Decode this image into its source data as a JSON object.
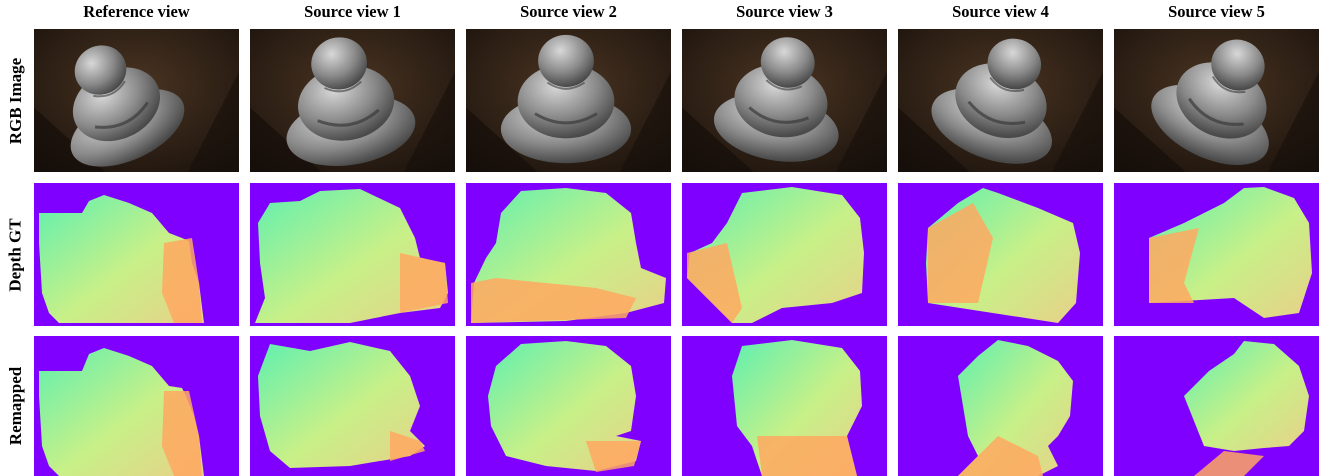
{
  "columns": [
    "Reference view",
    "Source view 1",
    "Source view 2",
    "Source view 3",
    "Source view 4",
    "Source view 5"
  ],
  "rows": [
    "RGB Image",
    "Depth GT",
    "Remapped"
  ],
  "colors": {
    "background_depth": "#8000ff",
    "depth_near": "#5ef0b0",
    "depth_mid": "#c8f088",
    "depth_far": "#ffa860",
    "photo_bg_dark": "#1a120c",
    "photo_bg_warm": "#4a3422",
    "statue_light": "#d8d8d8",
    "statue_dark": "#4a4a4a"
  }
}
